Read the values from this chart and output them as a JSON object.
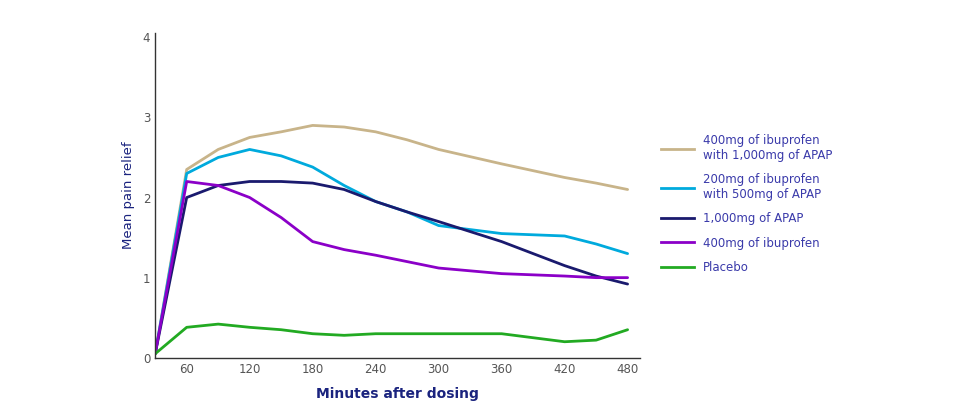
{
  "x": [
    30,
    60,
    90,
    120,
    150,
    180,
    210,
    240,
    270,
    300,
    360,
    420,
    450,
    480
  ],
  "series": {
    "400mg_ibu_1000mg_apap": {
      "label_line1": "400mg of ibuprofen",
      "label_line2": "with 1,000mg of APAP",
      "color": "#c8b48a",
      "values": [
        0.05,
        2.35,
        2.6,
        2.75,
        2.82,
        2.9,
        2.88,
        2.82,
        2.72,
        2.6,
        2.42,
        2.25,
        2.18,
        2.1
      ]
    },
    "200mg_ibu_500mg_apap": {
      "label_line1": "200mg of ibuprofen",
      "label_line2": "with 500mg of APAP",
      "color": "#00aadd",
      "values": [
        0.05,
        2.3,
        2.5,
        2.6,
        2.52,
        2.38,
        2.15,
        1.95,
        1.82,
        1.65,
        1.55,
        1.52,
        1.42,
        1.3
      ]
    },
    "1000mg_apap": {
      "label_line1": "1,000mg of APAP",
      "label_line2": "",
      "color": "#1a1a6e",
      "values": [
        0.05,
        2.0,
        2.15,
        2.2,
        2.2,
        2.18,
        2.1,
        1.95,
        1.82,
        1.7,
        1.45,
        1.15,
        1.02,
        0.92
      ]
    },
    "400mg_ibu": {
      "label_line1": "400mg of ibuprofen",
      "label_line2": "",
      "color": "#8b00c8",
      "values": [
        0.05,
        2.2,
        2.15,
        2.0,
        1.75,
        1.45,
        1.35,
        1.28,
        1.2,
        1.12,
        1.05,
        1.02,
        1.0,
        1.0
      ]
    },
    "placebo": {
      "label_line1": "Placebo",
      "label_line2": "",
      "color": "#22aa22",
      "values": [
        0.05,
        0.38,
        0.42,
        0.38,
        0.35,
        0.3,
        0.28,
        0.3,
        0.3,
        0.3,
        0.3,
        0.2,
        0.22,
        0.35
      ]
    }
  },
  "xlabel": "Minutes after dosing",
  "ylabel": "Mean pain relief",
  "xlim": [
    30,
    492
  ],
  "ylim": [
    0,
    4.05
  ],
  "xticks": [
    60,
    120,
    180,
    240,
    300,
    360,
    420,
    480
  ],
  "yticks": [
    0,
    1,
    2,
    3,
    4
  ],
  "xlabel_color": "#1a237e",
  "ylabel_color": "#1a237e",
  "tick_label_color": "#555555",
  "spine_color": "#333333",
  "background_color": "#ffffff",
  "linewidth": 2.0,
  "legend_text_color": "#3a3aaa",
  "legend_fontsize": 8.5,
  "legend_labelspacing": 0.95
}
